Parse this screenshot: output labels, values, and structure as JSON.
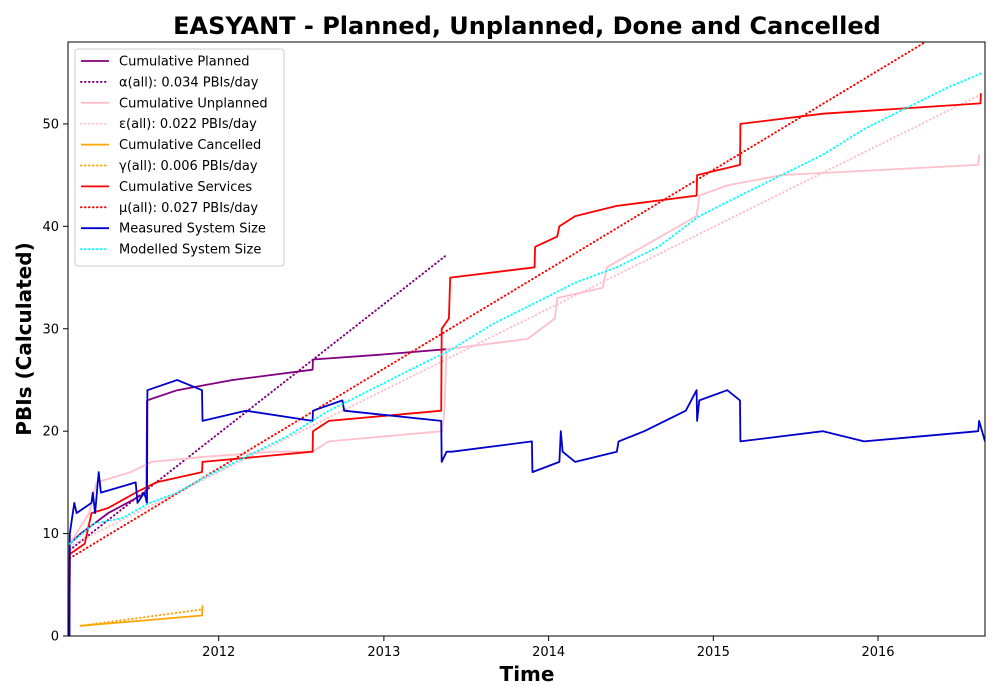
{
  "chart_data": {
    "type": "line",
    "title": "EASYANT - Planned, Unplanned, Done  and Cancelled",
    "xlabel": "Time",
    "ylabel": "PBIs (Calculated)",
    "xlim": [
      "2011-02-01",
      "2016-08-25"
    ],
    "ylim": [
      0,
      58
    ],
    "x_ticks": [
      "2012",
      "2013",
      "2014",
      "2015",
      "2016"
    ],
    "y_ticks": [
      0,
      10,
      20,
      30,
      40,
      50
    ],
    "grid": false,
    "legend_position": "upper-left",
    "series": [
      {
        "name": "Cumulative Planned",
        "color": "#800080",
        "style": "solid",
        "points": [
          [
            "2011-02-04",
            0
          ],
          [
            "2011-02-05",
            9
          ],
          [
            "2011-03-01",
            10
          ],
          [
            "2011-04-01",
            11
          ],
          [
            "2011-05-01",
            12
          ],
          [
            "2011-07-25",
            14
          ],
          [
            "2011-07-26",
            23
          ],
          [
            "2011-10-01",
            24
          ],
          [
            "2011-12-01",
            24.5
          ],
          [
            "2012-02-01",
            25
          ],
          [
            "2012-07-27",
            26
          ],
          [
            "2012-07-28",
            27
          ],
          [
            "2013-01-01",
            27.5
          ],
          [
            "2013-05-20",
            28
          ]
        ]
      },
      {
        "name": "α(all): 0.034 PBIs/day",
        "color": "#800080",
        "style": "dotted",
        "points": [
          [
            "2011-02-05",
            8.4
          ],
          [
            "2013-05-20",
            37.2
          ]
        ]
      },
      {
        "name": "Cumulative Unplanned",
        "color": "#ffc0cb",
        "style": "solid",
        "points": [
          [
            "2011-02-04",
            0
          ],
          [
            "2011-02-05",
            9
          ],
          [
            "2011-03-20",
            12
          ],
          [
            "2011-04-05",
            15
          ],
          [
            "2011-06-20",
            16
          ],
          [
            "2011-08-05",
            17
          ],
          [
            "2011-12-01",
            17.5
          ],
          [
            "2012-05-01",
            18
          ],
          [
            "2012-07-27",
            18
          ],
          [
            "2012-09-01",
            19
          ],
          [
            "2013-05-10",
            20
          ],
          [
            "2013-05-15",
            22
          ],
          [
            "2013-05-20",
            28
          ],
          [
            "2013-11-15",
            29
          ],
          [
            "2014-01-15",
            31
          ],
          [
            "2014-01-20",
            33
          ],
          [
            "2014-05-01",
            34
          ],
          [
            "2014-05-10",
            36
          ],
          [
            "2014-11-25",
            41
          ],
          [
            "2014-12-01",
            43
          ],
          [
            "2015-02-01",
            44
          ],
          [
            "2015-06-01",
            45
          ],
          [
            "2016-08-10",
            46
          ],
          [
            "2016-08-12",
            47
          ]
        ]
      },
      {
        "name": "ε(all): 0.022 PBIs/day",
        "color": "#ffc0cb",
        "style": "dotted",
        "points": [
          [
            "2011-02-05",
            8.8
          ],
          [
            "2016-08-12",
            52.8
          ]
        ]
      },
      {
        "name": "Cumulative Cancelled",
        "color": "#ffa500",
        "style": "solid",
        "points": [
          [
            "2011-03-01",
            1
          ],
          [
            "2011-11-25",
            2
          ],
          [
            "2011-11-26",
            3
          ]
        ]
      },
      {
        "name": "γ(all): 0.006 PBIs/day",
        "color": "#ffa500",
        "style": "dotted",
        "points": [
          [
            "2011-03-01",
            1
          ],
          [
            "2011-11-26",
            2.6
          ]
        ]
      },
      {
        "name": "Cumulative Services",
        "color": "#ff0000",
        "style": "solid",
        "points": [
          [
            "2011-02-04",
            0
          ],
          [
            "2011-02-05",
            8
          ],
          [
            "2011-03-10",
            9
          ],
          [
            "2011-03-25",
            12
          ],
          [
            "2011-05-01",
            12.5
          ],
          [
            "2011-07-01",
            14
          ],
          [
            "2011-08-15",
            15
          ],
          [
            "2011-11-25",
            16
          ],
          [
            "2011-11-26",
            17
          ],
          [
            "2012-07-27",
            18
          ],
          [
            "2012-07-28",
            20
          ],
          [
            "2012-09-01",
            21
          ],
          [
            "2013-05-08",
            22
          ],
          [
            "2013-05-09",
            30
          ],
          [
            "2013-05-25",
            31
          ],
          [
            "2013-05-28",
            35
          ],
          [
            "2013-12-01",
            36
          ],
          [
            "2013-12-02",
            38
          ],
          [
            "2014-01-20",
            39
          ],
          [
            "2014-01-25",
            40
          ],
          [
            "2014-03-01",
            41
          ],
          [
            "2014-06-01",
            42
          ],
          [
            "2014-11-25",
            43
          ],
          [
            "2014-11-26",
            45
          ],
          [
            "2015-03-01",
            46
          ],
          [
            "2015-03-02",
            50
          ],
          [
            "2015-09-01",
            51
          ],
          [
            "2016-08-15",
            52
          ],
          [
            "2016-08-16",
            53
          ]
        ]
      },
      {
        "name": "μ(all): 0.027 PBIs/day",
        "color": "#ff0000",
        "style": "dotted",
        "points": [
          [
            "2011-02-05",
            7.6
          ],
          [
            "2016-04-15",
            58
          ]
        ]
      },
      {
        "name": "Measured System Size",
        "color": "#0000cd",
        "style": "solid",
        "points": [
          [
            "2011-02-04",
            0
          ],
          [
            "2011-02-05",
            10
          ],
          [
            "2011-02-15",
            13
          ],
          [
            "2011-02-20",
            12
          ],
          [
            "2011-03-25",
            13
          ],
          [
            "2011-03-28",
            14
          ],
          [
            "2011-04-02",
            12
          ],
          [
            "2011-04-10",
            16
          ],
          [
            "2011-04-15",
            14
          ],
          [
            "2011-07-01",
            15
          ],
          [
            "2011-07-05",
            13
          ],
          [
            "2011-07-20",
            14
          ],
          [
            "2011-07-26",
            13
          ],
          [
            "2011-07-27",
            24
          ],
          [
            "2011-10-01",
            25
          ],
          [
            "2011-11-25",
            24
          ],
          [
            "2011-11-26",
            21
          ],
          [
            "2012-03-01",
            22
          ],
          [
            "2012-07-27",
            21
          ],
          [
            "2012-07-28",
            22
          ],
          [
            "2012-10-01",
            23
          ],
          [
            "2012-10-05",
            22
          ],
          [
            "2013-05-08",
            21
          ],
          [
            "2013-05-09",
            17
          ],
          [
            "2013-05-20",
            18
          ],
          [
            "2013-06-01",
            18
          ],
          [
            "2013-11-25",
            19
          ],
          [
            "2013-11-26",
            16
          ],
          [
            "2014-01-25",
            17
          ],
          [
            "2014-01-28",
            20
          ],
          [
            "2014-02-01",
            18
          ],
          [
            "2014-03-01",
            17
          ],
          [
            "2014-06-01",
            18
          ],
          [
            "2014-06-05",
            19
          ],
          [
            "2014-08-01",
            20
          ],
          [
            "2014-11-01",
            22
          ],
          [
            "2014-11-25",
            24
          ],
          [
            "2014-11-26",
            21
          ],
          [
            "2014-12-01",
            23
          ],
          [
            "2015-02-01",
            24
          ],
          [
            "2015-03-01",
            23
          ],
          [
            "2015-03-02",
            19
          ],
          [
            "2015-09-01",
            20
          ],
          [
            "2015-12-01",
            19
          ],
          [
            "2016-08-10",
            20
          ],
          [
            "2016-08-12",
            21
          ],
          [
            "2016-08-25",
            19
          ]
        ]
      },
      {
        "name": "Modelled System Size",
        "color": "#00ffff",
        "style": "dotted",
        "points": [
          [
            "2011-02-05",
            9
          ],
          [
            "2011-04-01",
            11
          ],
          [
            "2011-06-01",
            11.5
          ],
          [
            "2011-08-01",
            13
          ],
          [
            "2011-10-01",
            14
          ],
          [
            "2011-12-01",
            15.5
          ],
          [
            "2012-03-01",
            17.5
          ],
          [
            "2012-06-01",
            19.5
          ],
          [
            "2012-09-01",
            22
          ],
          [
            "2012-12-01",
            24
          ],
          [
            "2013-03-01",
            26
          ],
          [
            "2013-06-01",
            28
          ],
          [
            "2013-09-01",
            30.5
          ],
          [
            "2013-12-01",
            32.5
          ],
          [
            "2014-03-01",
            34.5
          ],
          [
            "2014-06-01",
            36
          ],
          [
            "2014-09-01",
            38
          ],
          [
            "2014-12-01",
            41
          ],
          [
            "2015-03-01",
            43
          ],
          [
            "2015-06-01",
            45
          ],
          [
            "2015-09-01",
            47
          ],
          [
            "2015-12-01",
            49.5
          ],
          [
            "2016-03-01",
            51.5
          ],
          [
            "2016-06-01",
            53.5
          ],
          [
            "2016-08-20",
            55
          ]
        ]
      }
    ]
  }
}
